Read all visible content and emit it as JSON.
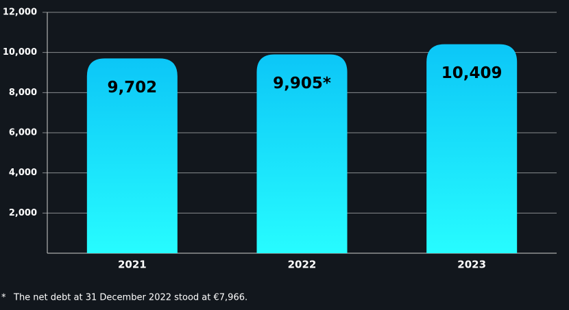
{
  "chart_data": {
    "type": "bar",
    "categories": [
      "2021",
      "2022",
      "2023"
    ],
    "values": [
      9702,
      9905,
      10409
    ],
    "value_labels": [
      "9,702",
      "9,905*",
      "10,409"
    ],
    "gradient": [
      "#0cc6f7",
      "#27fcff"
    ],
    "ylim": [
      0,
      12000
    ],
    "yticks": [
      {
        "value": 2000,
        "label": "2,000"
      },
      {
        "value": 4000,
        "label": "4,000"
      },
      {
        "value": 6000,
        "label": "6,000"
      },
      {
        "value": 8000,
        "label": "8,000"
      },
      {
        "value": 10000,
        "label": "10,000"
      },
      {
        "value": 12000,
        "label": "12,000"
      }
    ],
    "grid": true
  },
  "footnote": {
    "marker": "*",
    "text": "The net debt at 31 December 2022 stood at €7,966."
  }
}
